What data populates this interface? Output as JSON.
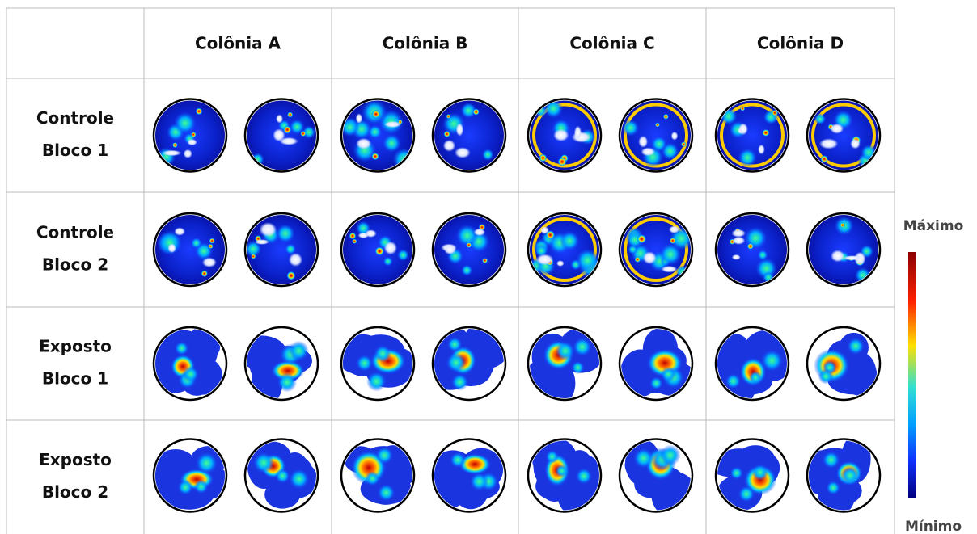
{
  "table": {
    "columns": [
      "Colônia A",
      "Colônia B",
      "Colônia C",
      "Colônia D"
    ],
    "rows": [
      [
        "Controle",
        "Bloco 1"
      ],
      [
        "Controle",
        "Bloco 2"
      ],
      [
        "Exposto",
        "Bloco 1"
      ],
      [
        "Exposto",
        "Bloco 2"
      ]
    ]
  },
  "colorbar": {
    "max": "Máximo",
    "min": "Mínimo"
  }
}
